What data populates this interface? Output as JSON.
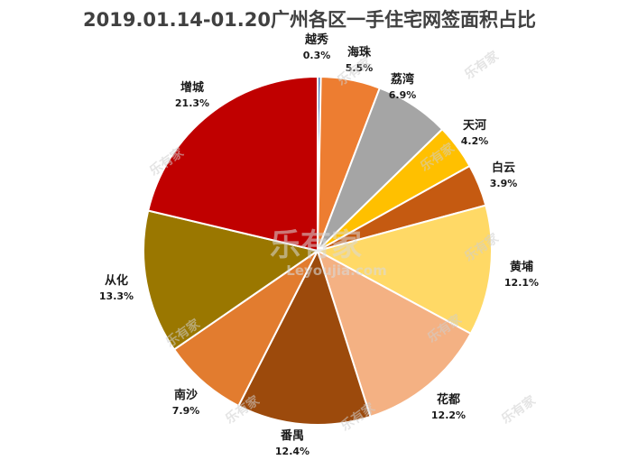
{
  "chart_data": {
    "type": "pie",
    "title": "2019.01.14-01.20广州各区一手住宅网签面积占比",
    "unit": "%",
    "slices": [
      {
        "name": "越秀",
        "label": "0.3%",
        "value": 0.3,
        "color": "#4f81bd"
      },
      {
        "name": "海珠",
        "label": "5.5%",
        "value": 5.5,
        "color": "#ed7d31"
      },
      {
        "name": "荔湾",
        "label": "6.9%",
        "value": 6.9,
        "color": "#a5a5a5"
      },
      {
        "name": "天河",
        "label": "4.2%",
        "value": 4.2,
        "color": "#ffc000"
      },
      {
        "name": "白云",
        "label": "3.9%",
        "value": 3.9,
        "color": "#c55a11"
      },
      {
        "name": "黄埔",
        "label": "12.1%",
        "value": 12.1,
        "color": "#ffd966"
      },
      {
        "name": "花都",
        "label": "12.2%",
        "value": 12.2,
        "color": "#f4b183"
      },
      {
        "name": "番禺",
        "label": "12.4%",
        "value": 12.4,
        "color": "#9c4a0c"
      },
      {
        "name": "南沙",
        "label": "7.9%",
        "value": 7.9,
        "color": "#e27c2f"
      },
      {
        "name": "从化",
        "label": "13.3%",
        "value": 13.3,
        "color": "#9a7700"
      },
      {
        "name": "增城",
        "label": "21.3%",
        "value": 21.3,
        "color": "#c00000"
      }
    ]
  },
  "watermark": {
    "brand": "乐有家",
    "url": "Leyoujia.com"
  }
}
